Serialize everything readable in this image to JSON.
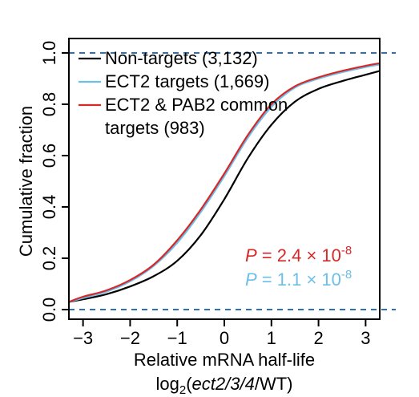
{
  "chart_data": {
    "type": "line",
    "title": "",
    "xlabel": "Relative mRNA half-life",
    "xlabel_sub": {
      "prefix": "log",
      "subscript": "2",
      "open": "(",
      "italic": "ect2/3/4",
      "suffix": "/WT)"
    },
    "ylabel": "Cumulative fraction",
    "xlim": [
      -3.3,
      3.3
    ],
    "ylim": [
      0,
      1
    ],
    "xticks": [
      -3,
      -2,
      -1,
      0,
      1,
      2,
      3
    ],
    "xtick_labels": [
      "−3",
      "−2",
      "−1",
      "0",
      "1",
      "2",
      "3"
    ],
    "yticks": [
      0.0,
      0.2,
      0.4,
      0.6,
      0.8,
      1.0
    ],
    "ytick_labels": [
      "0.0",
      "0.2",
      "0.4",
      "0.6",
      "0.8",
      "1.0"
    ],
    "reference_lines": [
      0,
      1
    ],
    "reference_line_color": "#2f6fb5",
    "grid": false,
    "legend_position": "top-left",
    "series": [
      {
        "name": "Non-targets (3,132)",
        "color": "#000000",
        "x": [
          -3.3,
          -3.0,
          -2.5,
          -2.0,
          -1.5,
          -1.0,
          -0.5,
          0.0,
          0.5,
          1.0,
          1.5,
          2.0,
          2.5,
          3.0,
          3.3
        ],
        "y": [
          0.03,
          0.04,
          0.06,
          0.09,
          0.13,
          0.19,
          0.29,
          0.43,
          0.59,
          0.72,
          0.81,
          0.86,
          0.89,
          0.915,
          0.93
        ]
      },
      {
        "name": "ECT2 targets (1,669)",
        "color": "#6bbfe8",
        "x": [
          -3.3,
          -3.0,
          -2.5,
          -2.0,
          -1.5,
          -1.0,
          -0.5,
          0.0,
          0.5,
          1.0,
          1.5,
          2.0,
          2.5,
          3.0,
          3.3
        ],
        "y": [
          0.03,
          0.045,
          0.07,
          0.11,
          0.17,
          0.26,
          0.38,
          0.52,
          0.67,
          0.79,
          0.865,
          0.9,
          0.925,
          0.945,
          0.955
        ]
      },
      {
        "name": "ECT2 & PAB2 common targets (983)",
        "color": "#d62828",
        "x": [
          -3.3,
          -3.0,
          -2.5,
          -2.0,
          -1.5,
          -1.0,
          -0.5,
          0.0,
          0.5,
          1.0,
          1.5,
          2.0,
          2.5,
          3.0,
          3.3
        ],
        "y": [
          0.03,
          0.05,
          0.075,
          0.115,
          0.175,
          0.27,
          0.39,
          0.53,
          0.68,
          0.8,
          0.87,
          0.905,
          0.93,
          0.95,
          0.96
        ]
      }
    ],
    "legend": {
      "entries": [
        {
          "lines": [
            "Non-targets (3,132)"
          ],
          "color": "#000000"
        },
        {
          "lines": [
            "ECT2 targets (1,669)"
          ],
          "color": "#6bbfe8"
        },
        {
          "lines": [
            "ECT2 & PAB2 common",
            "targets (983)"
          ],
          "color": "#d62828"
        }
      ]
    },
    "annotations": [
      {
        "italic": "P",
        "text": " = 2.4 × 10",
        "exponent": "-8",
        "color": "#d62828"
      },
      {
        "italic": "P",
        "text": " = 1.1 × 10",
        "exponent": "-8",
        "color": "#6bbfe8"
      }
    ]
  }
}
